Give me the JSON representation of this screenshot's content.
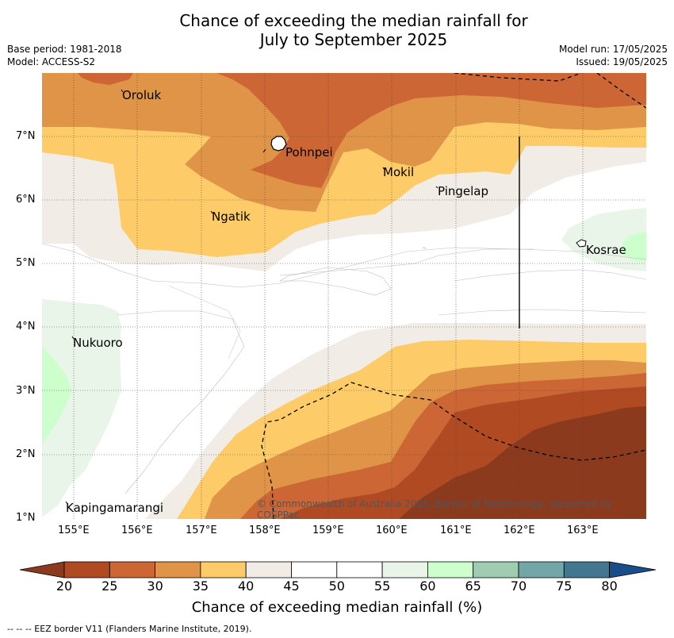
{
  "title_line1": "Chance of exceeding the median rainfall for",
  "title_line2": "July to September 2025",
  "meta": {
    "base_period": "Base period: 1981-2018",
    "model": "Model: ACCESS-S2",
    "model_run": "Model run: 17/05/2025",
    "issued": "Issued: 19/05/2025"
  },
  "axes": {
    "lat_labels": [
      "7°N",
      "6°N",
      "5°N",
      "4°N",
      "3°N",
      "2°N",
      "1°N"
    ],
    "lon_labels": [
      "155°E",
      "156°E",
      "157°E",
      "158°E",
      "159°E",
      "160°E",
      "161°E",
      "162°E",
      "163°E"
    ]
  },
  "places": {
    "oroluk": "Oroluk",
    "pohnpei": "Pohnpei",
    "mokil": "Mokil",
    "pingelap": "Pingelap",
    "ngatik": "Ngatik",
    "kosrae": "Kosrae",
    "nukuoro": "Nukuoro",
    "kapingamarangi": "Kapingamarangi"
  },
  "copyright": "© Commonwealth of Australia 2025, Bureau of Meteorology, supported by COSPPac",
  "colorbar": {
    "title": "Chance of exceeding median rainfall (%)",
    "ticks": [
      "20",
      "25",
      "30",
      "35",
      "40",
      "45",
      "50",
      "55",
      "60",
      "65",
      "70",
      "75",
      "80"
    ],
    "colors": [
      "#b04a23",
      "#cc6634",
      "#e09448",
      "#fdcc68",
      "#f1ece6",
      "#ffffff",
      "#ffffff",
      "#eaf5ea",
      "#ccffcc",
      "#9fcdb2",
      "#73a6a6",
      "#43778f"
    ],
    "under_color": "#8b3a1e",
    "over_color": "#1a4e8a"
  },
  "footer": "--  --  -- EEZ border V11 (Flanders Marine Institute, 2019)."
}
